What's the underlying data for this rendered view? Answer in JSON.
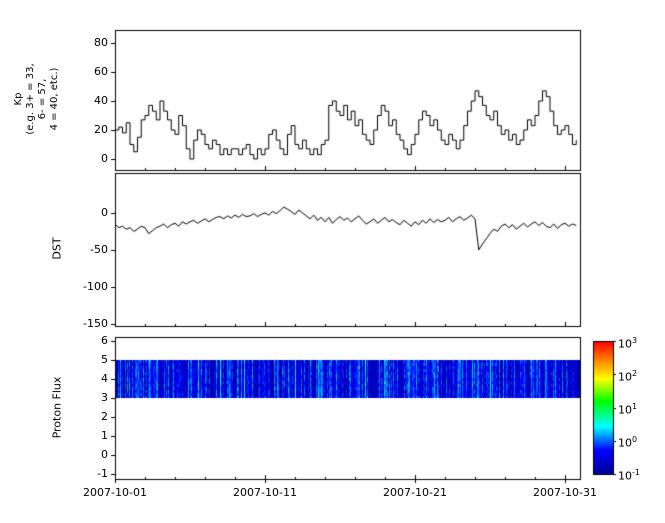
{
  "figure": {
    "background": "#ffffff",
    "axis_color": "#000000"
  },
  "x_axis": {
    "tick_labels": [
      "2007-10-01",
      "2007-10-11",
      "2007-10-21",
      "2007-10-31"
    ],
    "tick_days": [
      0,
      10,
      20,
      30
    ],
    "minor_tick_step_days": 2,
    "xlim_days": [
      0,
      31
    ]
  },
  "chart_data": [
    {
      "type": "line",
      "name": "Kp",
      "ylabel_lines": [
        "Kp",
        "(e.g. 3+ = 33,",
        "6- = 57,",
        "4 = 40, etc.)"
      ],
      "yticks": [
        0,
        20,
        40,
        60,
        80
      ],
      "ylim": [
        -7.6,
        89
      ],
      "x_start_day": 0,
      "x_step_days": 0.25,
      "step": true,
      "color": "#000000",
      "values": [
        20,
        22,
        18,
        25,
        10,
        5,
        15,
        27,
        30,
        37,
        33,
        27,
        40,
        33,
        27,
        20,
        17,
        30,
        23,
        7,
        0,
        13,
        20,
        17,
        10,
        7,
        13,
        10,
        3,
        7,
        3,
        7,
        7,
        3,
        7,
        10,
        3,
        0,
        7,
        3,
        7,
        17,
        20,
        13,
        7,
        3,
        17,
        23,
        10,
        7,
        13,
        7,
        3,
        7,
        3,
        10,
        13,
        37,
        40,
        33,
        30,
        37,
        27,
        33,
        23,
        27,
        17,
        13,
        10,
        20,
        30,
        37,
        33,
        23,
        27,
        17,
        13,
        7,
        3,
        10,
        17,
        27,
        33,
        30,
        23,
        27,
        20,
        13,
        10,
        17,
        13,
        7,
        13,
        23,
        33,
        40,
        47,
        43,
        37,
        30,
        27,
        33,
        23,
        17,
        20,
        13,
        17,
        10,
        13,
        20,
        27,
        23,
        30,
        40,
        47,
        43,
        33,
        23,
        17,
        20,
        23,
        17,
        10,
        13
      ]
    },
    {
      "type": "line",
      "name": "DST",
      "ylabel": "DST",
      "yticks": [
        -150,
        -100,
        -50,
        0
      ],
      "ylim": [
        -153,
        54
      ],
      "x_start_day": 0,
      "x_step_days": 0.25,
      "step": false,
      "color": "#000000",
      "values": [
        -15,
        -20,
        -18,
        -22,
        -20,
        -25,
        -22,
        -18,
        -20,
        -28,
        -24,
        -20,
        -18,
        -15,
        -20,
        -16,
        -14,
        -18,
        -12,
        -15,
        -12,
        -10,
        -14,
        -11,
        -8,
        -12,
        -9,
        -6,
        -5,
        -8,
        -4,
        -7,
        -3,
        -6,
        -2,
        -5,
        -4,
        -1,
        -5,
        -2,
        0,
        -3,
        2,
        -1,
        3,
        8,
        5,
        2,
        -2,
        4,
        0,
        -4,
        -8,
        -3,
        -10,
        -6,
        -12,
        -6,
        -14,
        -9,
        -5,
        -10,
        -7,
        -12,
        -8,
        -4,
        -10,
        -15,
        -12,
        -8,
        -14,
        -10,
        -6,
        -12,
        -9,
        -13,
        -16,
        -10,
        -14,
        -18,
        -12,
        -16,
        -10,
        -14,
        -8,
        -13,
        -9,
        -12,
        -10,
        -6,
        -12,
        -8,
        -5,
        -10,
        -7,
        -3,
        -8,
        -50,
        -42,
        -35,
        -28,
        -22,
        -25,
        -18,
        -15,
        -20,
        -16,
        -22,
        -18,
        -14,
        -19,
        -15,
        -12,
        -17,
        -13,
        -18,
        -20,
        -15,
        -21,
        -16,
        -14,
        -18,
        -15,
        -17
      ]
    },
    {
      "type": "heatmap",
      "name": "Proton Flux",
      "ylabel": "Proton Flux",
      "yticks": [
        -1,
        0,
        1,
        2,
        3,
        4,
        5,
        6
      ],
      "ylim": [
        -1.26,
        6.21
      ],
      "band": {
        "y_min": 3,
        "y_max": 5
      },
      "flux_log_range": [
        -1,
        0.4
      ],
      "colormap_log_range": [
        -1,
        3
      ],
      "noise_seed": 42
    }
  ],
  "colorbar": {
    "base": "10",
    "tick_exponents": [
      "3",
      "2",
      "1",
      "0",
      "-1"
    ],
    "stops": [
      [
        0,
        "#000096"
      ],
      [
        0.18,
        "#0000ff"
      ],
      [
        0.36,
        "#00ffff"
      ],
      [
        0.55,
        "#00ff00"
      ],
      [
        0.72,
        "#ffff00"
      ],
      [
        0.86,
        "#ff8000"
      ],
      [
        1,
        "#ff0000"
      ]
    ]
  }
}
